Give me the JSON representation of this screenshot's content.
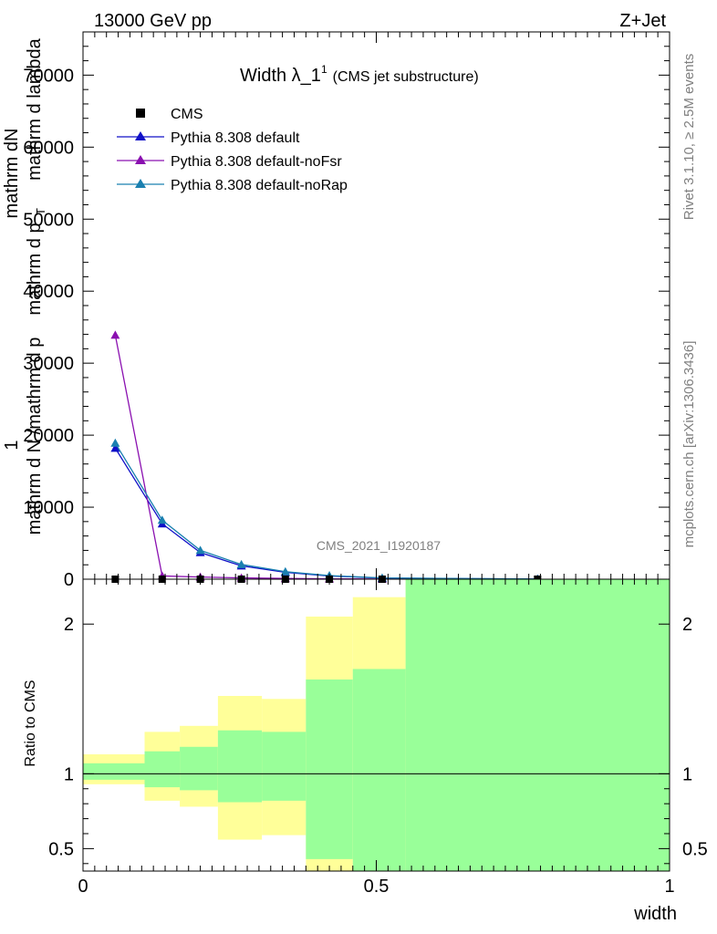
{
  "header": {
    "left": "13000 GeV pp",
    "right": "Z+Jet"
  },
  "side": {
    "rivet": "Rivet 3.1.10, ≥ 2.5M events",
    "mcplots": "mcplots.cern.ch [arXiv:1306.3436]"
  },
  "chart_data": {
    "type": "line",
    "title_main": "Width λ_1",
    "title_sup": "1",
    "title_sub": "(CMS jet substructure)",
    "analysis_label": "CMS_2021_I1920187",
    "ylabel_main_overlay": [
      "1",
      "mathrm d N /mathrm d p",
      "mathrm dN",
      "mathrm d p",
      "mathrm d lambda"
    ],
    "ylabel_main_sub": "T",
    "ylabel_ratio": "Ratio to CMS",
    "xlabel": "width",
    "xlim": [
      0,
      1
    ],
    "ylim_main": [
      0,
      76000
    ],
    "ylim_ratio": [
      0.35,
      2.3
    ],
    "x_ticks": [
      {
        "value": 0,
        "label": "0"
      },
      {
        "value": 0.5,
        "label": "0.5"
      },
      {
        "value": 1,
        "label": "1"
      }
    ],
    "y_ticks_main": [
      {
        "value": 0,
        "label": "0"
      },
      {
        "value": 10000,
        "label": "10000"
      },
      {
        "value": 20000,
        "label": "20000"
      },
      {
        "value": 30000,
        "label": "30000"
      },
      {
        "value": 40000,
        "label": "40000"
      },
      {
        "value": 50000,
        "label": "50000"
      },
      {
        "value": 60000,
        "label": "60000"
      },
      {
        "value": 70000,
        "label": "70000"
      }
    ],
    "y_ticks_ratio": [
      {
        "value": 0.5,
        "label": "0.5"
      },
      {
        "value": 1,
        "label": "1"
      },
      {
        "value": 2,
        "label": "2"
      }
    ],
    "legend": [
      {
        "name": "CMS",
        "marker": "square",
        "color": "#000000"
      },
      {
        "name": "Pythia 8.308 default",
        "marker": "triangle",
        "color": "#1010c8"
      },
      {
        "name": "Pythia 8.308 default-noFsr",
        "marker": "triangle",
        "color": "#8a10b0"
      },
      {
        "name": "Pythia 8.308 default-noRap",
        "marker": "triangle",
        "color": "#1a80b0"
      }
    ],
    "x": [
      0.055,
      0.135,
      0.2,
      0.27,
      0.345,
      0.42,
      0.51,
      0.775
    ],
    "cms": [
      0,
      0,
      0,
      0,
      0,
      0,
      0,
      0
    ],
    "series": [
      {
        "name": "Pythia 8.308 default",
        "color": "#1010c8",
        "values": [
          18200,
          7700,
          3700,
          1850,
          950,
          450,
          150,
          20
        ]
      },
      {
        "name": "Pythia 8.308 default-noFsr",
        "color": "#8a10b0",
        "values": [
          33900,
          450,
          300,
          180,
          100,
          50,
          20,
          5
        ]
      },
      {
        "name": "Pythia 8.308 default-noRap",
        "color": "#1a80b0",
        "values": [
          18900,
          8200,
          4000,
          2050,
          1050,
          500,
          170,
          25
        ]
      }
    ],
    "ratio_bands": [
      {
        "x0": 0.0,
        "x1": 0.105,
        "yellow": [
          0.93,
          1.13
        ],
        "green": [
          0.96,
          1.07
        ]
      },
      {
        "x0": 0.105,
        "x1": 0.165,
        "yellow": [
          0.82,
          1.28
        ],
        "green": [
          0.91,
          1.15
        ]
      },
      {
        "x0": 0.165,
        "x1": 0.23,
        "yellow": [
          0.78,
          1.32
        ],
        "green": [
          0.89,
          1.18
        ]
      },
      {
        "x0": 0.23,
        "x1": 0.305,
        "yellow": [
          0.56,
          1.52
        ],
        "green": [
          0.81,
          1.29
        ]
      },
      {
        "x0": 0.305,
        "x1": 0.38,
        "yellow": [
          0.59,
          1.5
        ],
        "green": [
          0.82,
          1.28
        ]
      },
      {
        "x0": 0.38,
        "x1": 0.46,
        "yellow": [
          0.35,
          2.05
        ],
        "green": [
          0.43,
          1.63
        ]
      },
      {
        "x0": 0.46,
        "x1": 0.55,
        "yellow": [
          0.35,
          2.18
        ],
        "green": [
          0.35,
          1.7
        ]
      },
      {
        "x0": 0.55,
        "x1": 1.0,
        "yellow": [
          0.35,
          2.3
        ],
        "green": [
          0.35,
          2.3
        ]
      }
    ],
    "colors": {
      "band_yellow": "#ffff99",
      "band_green": "#99ff99"
    }
  }
}
